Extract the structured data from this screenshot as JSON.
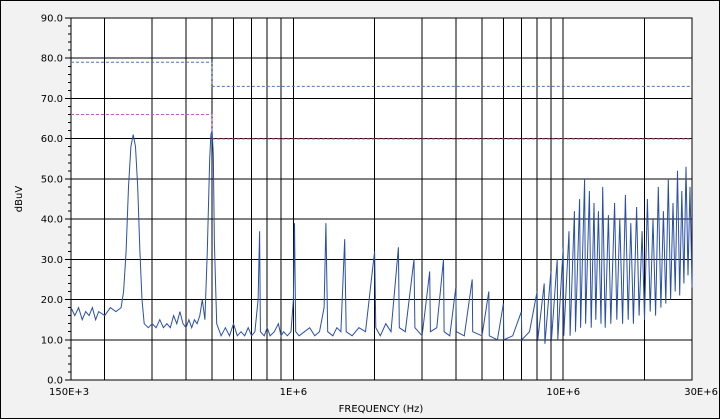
{
  "chart_data": {
    "type": "line",
    "title": "",
    "xlabel": "FREQUENCY (Hz)",
    "ylabel": "dBuV",
    "x_scale": "log",
    "xlim": [
      150000,
      30000000
    ],
    "ylim": [
      0,
      90
    ],
    "grid": true,
    "legend": "none",
    "x_tick_labels": [
      {
        "value": 150000,
        "label": "150E+3"
      },
      {
        "value": 1000000,
        "label": "1E+6"
      },
      {
        "value": 10000000,
        "label": "10E+6"
      },
      {
        "value": 30000000,
        "label": "30E+6"
      }
    ],
    "y_tick_labels": [
      {
        "value": 0,
        "label": "0.0"
      },
      {
        "value": 10,
        "label": "10.0"
      },
      {
        "value": 20,
        "label": "20.0"
      },
      {
        "value": 30,
        "label": "30.0"
      },
      {
        "value": 40,
        "label": "40.0"
      },
      {
        "value": 50,
        "label": "50.0"
      },
      {
        "value": 60,
        "label": "60.0"
      },
      {
        "value": 70,
        "label": "70.0"
      },
      {
        "value": 80,
        "label": "80.0"
      },
      {
        "value": 90,
        "label": "90.0"
      }
    ],
    "x_gridlines": [
      150000,
      200000,
      300000,
      400000,
      500000,
      600000,
      700000,
      800000,
      900000,
      1000000,
      2000000,
      3000000,
      4000000,
      5000000,
      6000000,
      7000000,
      8000000,
      9000000,
      10000000,
      20000000,
      30000000
    ],
    "limit_lines": [
      {
        "color": "#4a79b5",
        "points": [
          [
            150000,
            79
          ],
          [
            500000,
            79
          ],
          [
            500000,
            73
          ],
          [
            30000000,
            73
          ]
        ]
      },
      {
        "color": "#c85ac8",
        "points": [
          [
            150000,
            66
          ],
          [
            500000,
            66
          ],
          [
            500000,
            60
          ],
          [
            30000000,
            60
          ]
        ]
      },
      {
        "color": "#8b2a3a",
        "points": [
          [
            500000,
            60
          ],
          [
            30000000,
            60
          ]
        ]
      }
    ],
    "series": [
      {
        "color": "#2a4fa8",
        "points": [
          [
            150000,
            18
          ],
          [
            155000,
            16
          ],
          [
            160000,
            18
          ],
          [
            165000,
            15
          ],
          [
            170000,
            17
          ],
          [
            175000,
            16
          ],
          [
            180000,
            18
          ],
          [
            185000,
            15
          ],
          [
            190000,
            17
          ],
          [
            200000,
            16
          ],
          [
            210000,
            18
          ],
          [
            220000,
            17
          ],
          [
            230000,
            18
          ],
          [
            235000,
            22
          ],
          [
            240000,
            32
          ],
          [
            245000,
            48
          ],
          [
            250000,
            58
          ],
          [
            255000,
            61
          ],
          [
            260000,
            58
          ],
          [
            265000,
            48
          ],
          [
            270000,
            32
          ],
          [
            275000,
            20
          ],
          [
            280000,
            14
          ],
          [
            290000,
            13
          ],
          [
            300000,
            14
          ],
          [
            310000,
            13
          ],
          [
            320000,
            15
          ],
          [
            330000,
            13
          ],
          [
            340000,
            14
          ],
          [
            350000,
            13
          ],
          [
            360000,
            16
          ],
          [
            370000,
            14
          ],
          [
            380000,
            17
          ],
          [
            390000,
            14
          ],
          [
            400000,
            13
          ],
          [
            410000,
            15
          ],
          [
            420000,
            13
          ],
          [
            430000,
            15
          ],
          [
            440000,
            14
          ],
          [
            450000,
            16
          ],
          [
            460000,
            20
          ],
          [
            470000,
            15
          ],
          [
            480000,
            32
          ],
          [
            490000,
            55
          ],
          [
            495000,
            61
          ],
          [
            500000,
            62
          ],
          [
            505000,
            56
          ],
          [
            510000,
            34
          ],
          [
            520000,
            14
          ],
          [
            540000,
            11
          ],
          [
            560000,
            13
          ],
          [
            580000,
            11
          ],
          [
            600000,
            14
          ],
          [
            620000,
            11
          ],
          [
            640000,
            12
          ],
          [
            660000,
            11
          ],
          [
            680000,
            13
          ],
          [
            700000,
            11
          ],
          [
            720000,
            12
          ],
          [
            740000,
            20
          ],
          [
            750000,
            37
          ],
          [
            755000,
            12
          ],
          [
            780000,
            11
          ],
          [
            800000,
            13
          ],
          [
            820000,
            11
          ],
          [
            850000,
            12
          ],
          [
            880000,
            14
          ],
          [
            900000,
            11
          ],
          [
            920000,
            12
          ],
          [
            950000,
            11
          ],
          [
            980000,
            12
          ],
          [
            1000000,
            20
          ],
          [
            1010000,
            39
          ],
          [
            1020000,
            12
          ],
          [
            1050000,
            11
          ],
          [
            1100000,
            12
          ],
          [
            1150000,
            13
          ],
          [
            1200000,
            11
          ],
          [
            1250000,
            12
          ],
          [
            1300000,
            18
          ],
          [
            1320000,
            39
          ],
          [
            1340000,
            12
          ],
          [
            1400000,
            11
          ],
          [
            1450000,
            13
          ],
          [
            1500000,
            12
          ],
          [
            1550000,
            35
          ],
          [
            1570000,
            12
          ],
          [
            1650000,
            11
          ],
          [
            1750000,
            13
          ],
          [
            1850000,
            12
          ],
          [
            2000000,
            32
          ],
          [
            2020000,
            13
          ],
          [
            2100000,
            11
          ],
          [
            2200000,
            14
          ],
          [
            2300000,
            12
          ],
          [
            2450000,
            33
          ],
          [
            2470000,
            13
          ],
          [
            2600000,
            12
          ],
          [
            2800000,
            30
          ],
          [
            2820000,
            13
          ],
          [
            3000000,
            11
          ],
          [
            3200000,
            27
          ],
          [
            3220000,
            12
          ],
          [
            3400000,
            13
          ],
          [
            3600000,
            30
          ],
          [
            3620000,
            12
          ],
          [
            3800000,
            11
          ],
          [
            4000000,
            23
          ],
          [
            4020000,
            12
          ],
          [
            4300000,
            11
          ],
          [
            4600000,
            25
          ],
          [
            4620000,
            12
          ],
          [
            5000000,
            11
          ],
          [
            5300000,
            22
          ],
          [
            5320000,
            11
          ],
          [
            5700000,
            10
          ],
          [
            6000000,
            19
          ],
          [
            6020000,
            10
          ],
          [
            6500000,
            11
          ],
          [
            7000000,
            17
          ],
          [
            7020000,
            10
          ],
          [
            7500000,
            12
          ],
          [
            8000000,
            22
          ],
          [
            8050000,
            10
          ],
          [
            8500000,
            24
          ],
          [
            8550000,
            9
          ],
          [
            9000000,
            27
          ],
          [
            9050000,
            10
          ],
          [
            9500000,
            30
          ],
          [
            9550000,
            10
          ],
          [
            10000000,
            33
          ],
          [
            10050000,
            11
          ],
          [
            10500000,
            37
          ],
          [
            10600000,
            11
          ],
          [
            11000000,
            42
          ],
          [
            11100000,
            12
          ],
          [
            11500000,
            45
          ],
          [
            11600000,
            13
          ],
          [
            12000000,
            50
          ],
          [
            12100000,
            14
          ],
          [
            12500000,
            47
          ],
          [
            12700000,
            13
          ],
          [
            13000000,
            44
          ],
          [
            13200000,
            15
          ],
          [
            13500000,
            42
          ],
          [
            13800000,
            14
          ],
          [
            14000000,
            48
          ],
          [
            14300000,
            13
          ],
          [
            14700000,
            41
          ],
          [
            15000000,
            14
          ],
          [
            15500000,
            44
          ],
          [
            15800000,
            15
          ],
          [
            16200000,
            40
          ],
          [
            16600000,
            14
          ],
          [
            17000000,
            46
          ],
          [
            17400000,
            15
          ],
          [
            17800000,
            39
          ],
          [
            18200000,
            14
          ],
          [
            18700000,
            43
          ],
          [
            19100000,
            16
          ],
          [
            19600000,
            37
          ],
          [
            20000000,
            15
          ],
          [
            20500000,
            45
          ],
          [
            21000000,
            17
          ],
          [
            21500000,
            40
          ],
          [
            22000000,
            16
          ],
          [
            22500000,
            48
          ],
          [
            23000000,
            18
          ],
          [
            23500000,
            42
          ],
          [
            24000000,
            19
          ],
          [
            24500000,
            50
          ],
          [
            25000000,
            20
          ],
          [
            25500000,
            44
          ],
          [
            26000000,
            22
          ],
          [
            26500000,
            52
          ],
          [
            27000000,
            21
          ],
          [
            27500000,
            47
          ],
          [
            28000000,
            24
          ],
          [
            28500000,
            53
          ],
          [
            29000000,
            26
          ],
          [
            29500000,
            48
          ],
          [
            30000000,
            23
          ]
        ]
      }
    ]
  }
}
